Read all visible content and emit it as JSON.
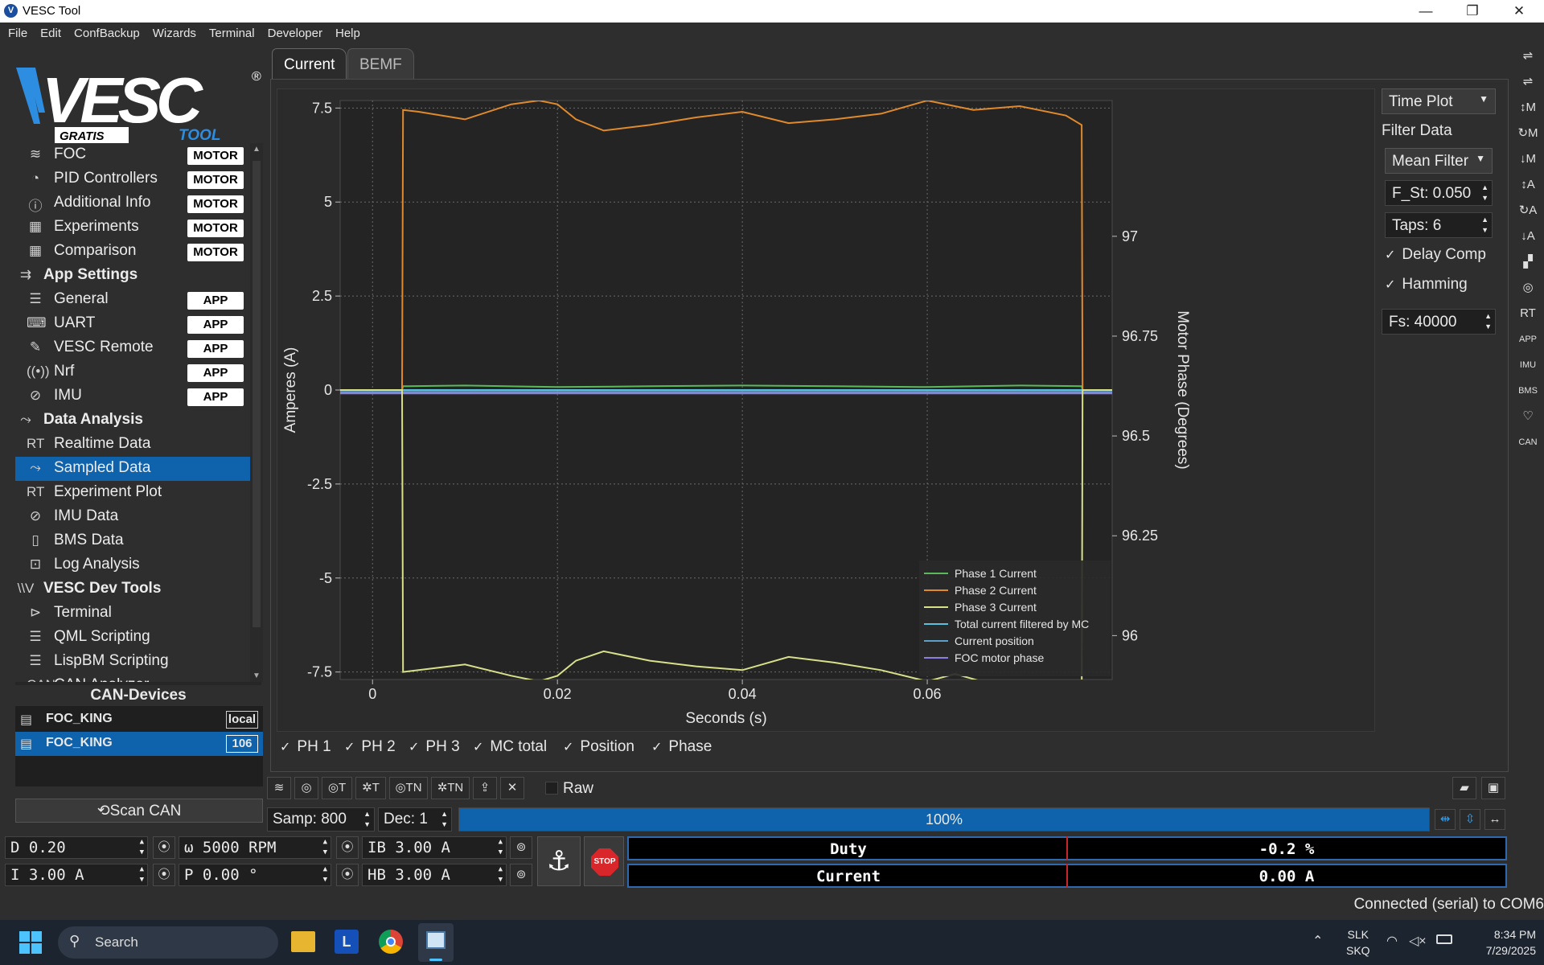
{
  "window": {
    "title": "VESC Tool",
    "minimize": "—",
    "maximize": "❐",
    "close": "✕"
  },
  "menu": [
    "File",
    "Edit",
    "ConfBackup",
    "Wizards",
    "Terminal",
    "Developer",
    "Help"
  ],
  "logo": {
    "main": "VESC",
    "sub_left": "GRATIS",
    "sub_right": "TOOL",
    "reg": "®"
  },
  "nav": {
    "items": [
      {
        "label": "FOC",
        "badge": "MOTOR",
        "icon": "foc-icon",
        "glyph": "≋"
      },
      {
        "label": "PID Controllers",
        "badge": "MOTOR",
        "icon": "gauge-icon",
        "glyph": "◔"
      },
      {
        "label": "Additional Info",
        "badge": "MOTOR",
        "icon": "info-icon",
        "glyph": "ⓘ"
      },
      {
        "label": "Experiments",
        "badge": "MOTOR",
        "icon": "calculator-icon",
        "glyph": "▦"
      },
      {
        "label": "Comparison",
        "badge": "MOTOR",
        "icon": "calculator-icon",
        "glyph": "▦"
      },
      {
        "label": "App Settings",
        "section": true,
        "icon": "app-settings-icon",
        "glyph": "⇉"
      },
      {
        "label": "General",
        "badge": "APP",
        "icon": "sliders-icon",
        "glyph": "☰"
      },
      {
        "label": "UART",
        "badge": "APP",
        "icon": "keyboard-icon",
        "glyph": "⌨"
      },
      {
        "label": "VESC Remote",
        "badge": "APP",
        "icon": "remote-icon",
        "glyph": "✎"
      },
      {
        "label": "Nrf",
        "badge": "APP",
        "icon": "wireless-icon",
        "glyph": "((•))"
      },
      {
        "label": "IMU",
        "badge": "APP",
        "icon": "imu-icon",
        "glyph": "⊘"
      },
      {
        "label": "Data Analysis",
        "section": true,
        "icon": "data-analysis-icon",
        "glyph": "⤳"
      },
      {
        "label": "Realtime Data",
        "icon": "realtime-icon",
        "glyph": "RT"
      },
      {
        "label": "Sampled Data",
        "icon": "sampled-icon",
        "glyph": "⤳",
        "selected": true
      },
      {
        "label": "Experiment Plot",
        "icon": "experiment-plot-icon",
        "glyph": "RT"
      },
      {
        "label": "IMU Data",
        "icon": "imu-icon",
        "glyph": "⊘"
      },
      {
        "label": "BMS Data",
        "icon": "battery-icon",
        "glyph": "▯"
      },
      {
        "label": "Log Analysis",
        "icon": "log-icon",
        "glyph": "⊡"
      },
      {
        "label": "VESC Dev Tools",
        "section": true,
        "icon": "vesc-icon",
        "glyph": "\\\\V"
      },
      {
        "label": "Terminal",
        "icon": "terminal-icon",
        "glyph": "⊳"
      },
      {
        "label": "QML Scripting",
        "icon": "script-icon",
        "glyph": "☰"
      },
      {
        "label": "LispBM Scripting",
        "icon": "script-icon",
        "glyph": "☰"
      },
      {
        "label": "CAN Analyzer",
        "icon": "can-icon",
        "glyph": "CAN"
      }
    ]
  },
  "can": {
    "title": "CAN-Devices",
    "devices": [
      {
        "name": "FOC_KING",
        "tag": "local",
        "selected": false
      },
      {
        "name": "FOC_KING",
        "tag": "106",
        "selected": true
      }
    ],
    "scan_label": "Scan CAN"
  },
  "tabs": [
    {
      "label": "Current",
      "active": true
    },
    {
      "label": "BEMF",
      "active": false
    }
  ],
  "chart_data": {
    "type": "line",
    "title": "",
    "xlabel": "Seconds (s)",
    "ylabel": "Amperes (A)",
    "y2label": "Motor Phase (Degrees)",
    "xlim": [
      -0.0035,
      0.08
    ],
    "ylim": [
      -7.7,
      7.7
    ],
    "y2lim": [
      95.89,
      97.34
    ],
    "xticks": [
      "0",
      "0.02",
      "0.04",
      "0.06"
    ],
    "xtick_values": [
      0,
      0.02,
      0.04,
      0.06
    ],
    "yticks": [
      "7.5",
      "5",
      "2.5",
      "0",
      "-2.5",
      "-5",
      "-7.5"
    ],
    "ytick_values": [
      7.5,
      5,
      2.5,
      0,
      -2.5,
      -5,
      -7.5
    ],
    "y2ticks": [
      "97",
      "96.75",
      "96.5",
      "96.25",
      "96"
    ],
    "y2tick_values": [
      97,
      96.75,
      96.5,
      96.25,
      96
    ],
    "grid": true,
    "legend_position": "bottom-right",
    "series": [
      {
        "name": "Phase 1 Current",
        "color": "#5cb85c",
        "x": [
          -0.0035,
          0.0032,
          0.0033,
          0.01,
          0.02,
          0.03,
          0.04,
          0.05,
          0.06,
          0.07,
          0.0767,
          0.0768,
          0.08
        ],
        "y": [
          0,
          0,
          0.1,
          0.12,
          0.08,
          0.1,
          0.12,
          0.1,
          0.08,
          0.12,
          0.1,
          0,
          0
        ]
      },
      {
        "name": "Phase 2 Current",
        "color": "#e08a2c",
        "x": [
          -0.0035,
          0.0032,
          0.0033,
          0.005,
          0.01,
          0.015,
          0.018,
          0.02,
          0.022,
          0.025,
          0.03,
          0.035,
          0.04,
          0.045,
          0.05,
          0.055,
          0.06,
          0.065,
          0.07,
          0.075,
          0.0767,
          0.0768,
          0.08
        ],
        "y": [
          0,
          0,
          7.45,
          7.4,
          7.2,
          7.6,
          7.7,
          7.6,
          7.2,
          6.9,
          7.05,
          7.25,
          7.4,
          7.1,
          7.2,
          7.35,
          7.7,
          7.45,
          7.55,
          7.3,
          7.05,
          0,
          0
        ]
      },
      {
        "name": "Phase 3 Current",
        "color": "#d8e08a",
        "x": [
          -0.0035,
          0.0032,
          0.0033,
          0.005,
          0.01,
          0.015,
          0.018,
          0.02,
          0.022,
          0.025,
          0.03,
          0.035,
          0.04,
          0.045,
          0.05,
          0.055,
          0.06,
          0.063,
          0.0767,
          0.0768,
          0.08
        ],
        "y": [
          0,
          0,
          -7.5,
          -7.45,
          -7.3,
          -7.6,
          -7.75,
          -7.6,
          -7.2,
          -6.95,
          -7.2,
          -7.35,
          -7.45,
          -7.1,
          -7.25,
          -7.45,
          -7.75,
          -7.55,
          -8.5,
          0,
          0
        ]
      },
      {
        "name": "Total current filtered by MC",
        "color": "#5bc0de",
        "x": [
          -0.0035,
          0.08
        ],
        "y": [
          0,
          0
        ]
      },
      {
        "name": "Current position",
        "color": "#5aa0c8",
        "x": [
          -0.0035,
          0.08
        ],
        "y": [
          -0.05,
          -0.05
        ]
      },
      {
        "name": "FOC motor phase",
        "color": "#8a7fe0",
        "x": [
          -0.0035,
          0.08
        ],
        "y": [
          -0.08,
          -0.08
        ]
      }
    ]
  },
  "checks": [
    {
      "label": "PH 1",
      "checked": true
    },
    {
      "label": "PH 2",
      "checked": true
    },
    {
      "label": "PH 3",
      "checked": true
    },
    {
      "label": "MC total",
      "checked": true
    },
    {
      "label": "Position",
      "checked": true
    },
    {
      "label": "Phase",
      "checked": true
    }
  ],
  "right_panel": {
    "plot_mode": "Time Plot",
    "filter_title": "Filter Data",
    "filter_type": "Mean Filter",
    "f_st": "F_St: 0.050",
    "taps": "Taps: 6",
    "delay_comp": "Delay Comp",
    "hamming": "Hamming",
    "fs": "Fs: 40000"
  },
  "sample_toolbar": {
    "buttons": [
      {
        "label": "≋",
        "icon": "foc-sample-icon"
      },
      {
        "label": "◎",
        "icon": "sample-icon"
      },
      {
        "label": "◎T",
        "icon": "sample-trigger-icon"
      },
      {
        "label": "✲T",
        "icon": "sample-trigger-alt-icon"
      },
      {
        "label": "◎TN",
        "icon": "sample-trigger-n-icon"
      },
      {
        "label": "✲TN",
        "icon": "sample-trigger-n-alt-icon"
      },
      {
        "label": "⇪",
        "icon": "upload-icon"
      },
      {
        "label": "✕",
        "icon": "cancel-icon"
      }
    ],
    "raw_label": "Raw",
    "samp": "Samp: 800",
    "dec": "Dec: 1",
    "progress_label": "100%",
    "progress": 1.0
  },
  "controls": {
    "duty": "D 0.20",
    "rpm": "ω 5000 RPM",
    "ib": "IB 3.00 A",
    "current": "I 3.00 A",
    "pos": "P 0.00 °",
    "hb": "HB 3.00 A",
    "stop_label": "STOP",
    "duty_label": "Duty",
    "duty_value": "-0.2 %",
    "current_label": "Current",
    "current_value": "0.00 A"
  },
  "status": "Connected (serial) to COM6",
  "right_toolbar": [
    "⇌",
    "⇌",
    "↕M",
    "↻M",
    "↓M",
    "↕A",
    "↻A",
    "↓A",
    "▞",
    "◎",
    "RT",
    "APP",
    "IMU",
    "BMS",
    "♡",
    "CAN"
  ],
  "taskbar": {
    "search": "Search",
    "lang1": "SLK",
    "lang2": "SKQ",
    "time": "8:34 PM",
    "date": "7/29/2025",
    "apps": [
      "L"
    ]
  }
}
